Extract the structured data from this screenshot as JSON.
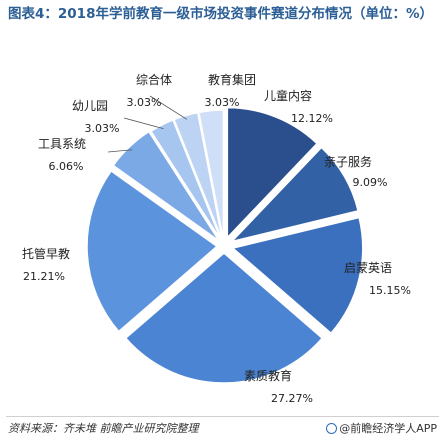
{
  "title": "图表4：2018年学前教育一级市场投资事件赛道分布情况（单位：%）",
  "footer": {
    "source": "资料来源：齐未堆   前瞻产业研究院整理",
    "brand": "@前瞻经济学人APP"
  },
  "chart_data": {
    "type": "pie",
    "title": "图表4：2018年学前教育一级市场投资事件赛道分布情况（单位：%）",
    "unit": "%",
    "legend": "none",
    "labels_outside": true,
    "slices": [
      {
        "label": "儿童内容",
        "value": 12.12,
        "value_text": "12.12%",
        "color": "#2a4f8c"
      },
      {
        "label": "亲子服务",
        "value": 9.09,
        "value_text": "9.09%",
        "color": "#3261a6"
      },
      {
        "label": "启蒙英语",
        "value": 15.15,
        "value_text": "15.15%",
        "color": "#3a70bd"
      },
      {
        "label": "素质教育",
        "value": 27.27,
        "value_text": "27.27%",
        "color": "#4a84d2"
      },
      {
        "label": "托管早教",
        "value": 21.21,
        "value_text": "21.21%",
        "color": "#5b93dc"
      },
      {
        "label": "工具系统",
        "value": 6.06,
        "value_text": "6.06%",
        "color": "#7aa9e6"
      },
      {
        "label": "幼儿园",
        "value": 3.03,
        "value_text": "3.03%",
        "color": "#a6c5ef"
      },
      {
        "label": "综合体",
        "value": 3.03,
        "value_text": "3.03%",
        "color": "#bcd3f3"
      },
      {
        "label": "教育集团",
        "value": 3.03,
        "value_text": "3.03%",
        "color": "#cfdff7"
      }
    ]
  }
}
